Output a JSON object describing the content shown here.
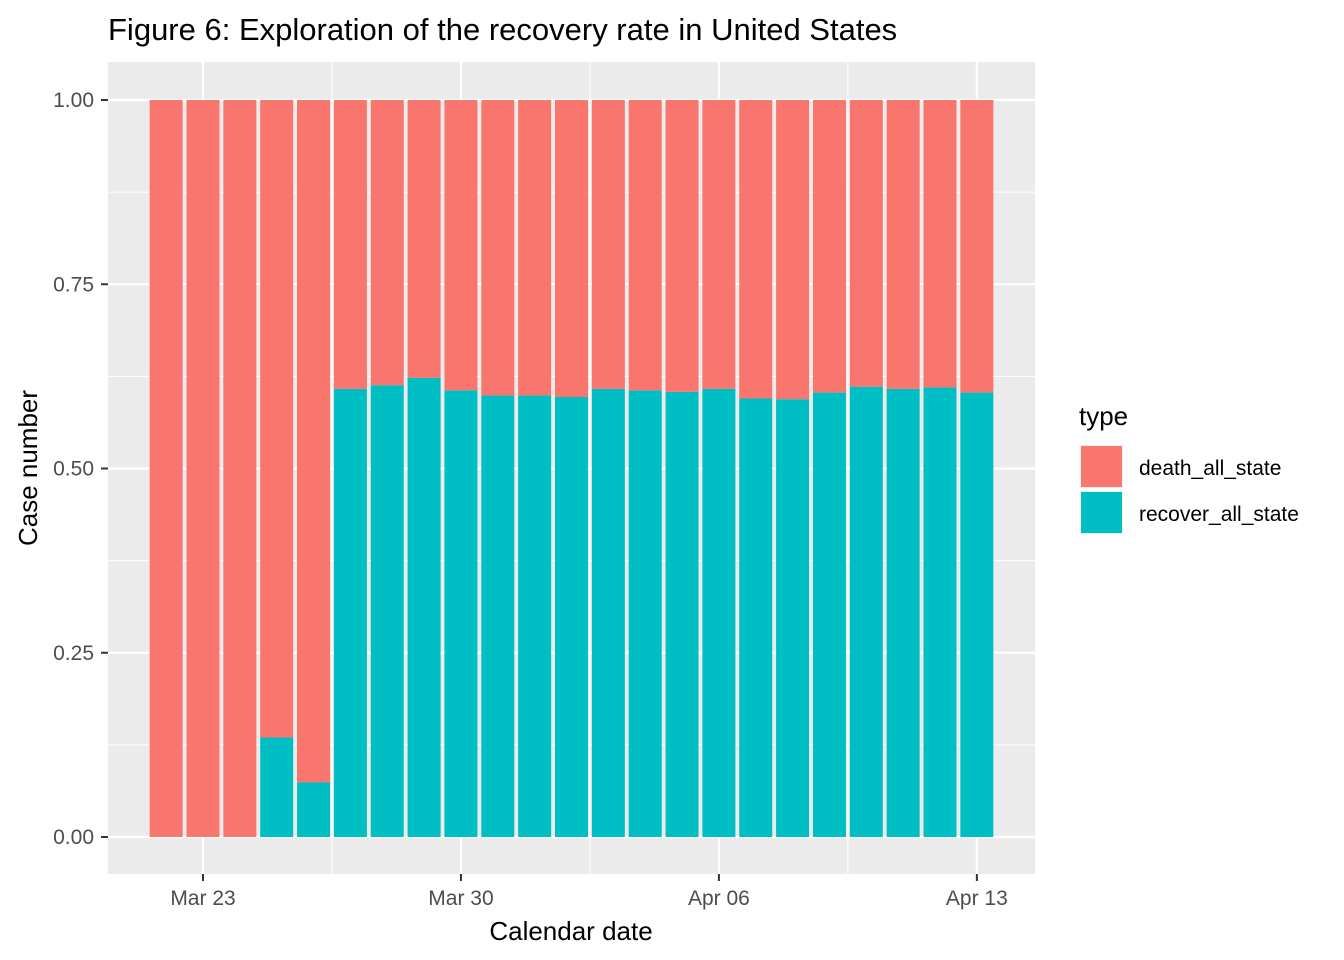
{
  "chart_data": {
    "type": "bar",
    "stacked": true,
    "title": "Figure 6: Exploration of the recovery rate in United States",
    "xlabel": "Calendar date",
    "ylabel": "Case number",
    "ylim": [
      0,
      1
    ],
    "yticks": [
      "0.00",
      "0.25",
      "0.50",
      "0.75",
      "1.00"
    ],
    "x_dates": [
      "2020-03-22",
      "2020-03-23",
      "2020-03-24",
      "2020-03-25",
      "2020-03-26",
      "2020-03-27",
      "2020-03-28",
      "2020-03-29",
      "2020-03-30",
      "2020-03-31",
      "2020-04-01",
      "2020-04-02",
      "2020-04-03",
      "2020-04-04",
      "2020-04-05",
      "2020-04-06",
      "2020-04-07",
      "2020-04-08",
      "2020-04-09",
      "2020-04-10",
      "2020-04-11",
      "2020-04-12",
      "2020-04-13"
    ],
    "xticks": [
      {
        "date": "2020-03-23",
        "label": "Mar 23"
      },
      {
        "date": "2020-03-30",
        "label": "Mar 30"
      },
      {
        "date": "2020-04-06",
        "label": "Apr 06"
      },
      {
        "date": "2020-04-13",
        "label": "Apr 13"
      }
    ],
    "grid": true,
    "legend": {
      "title": "type",
      "placement": "right"
    },
    "series": [
      {
        "name": "death_all_state",
        "color": "#F8766D",
        "values": [
          1.0,
          1.0,
          1.0,
          0.865,
          0.926,
          0.392,
          0.387,
          0.377,
          0.394,
          0.401,
          0.401,
          0.403,
          0.392,
          0.394,
          0.396,
          0.392,
          0.405,
          0.406,
          0.397,
          0.389,
          0.392,
          0.39,
          0.397
        ]
      },
      {
        "name": "recover_all_state",
        "color": "#00BFC4",
        "values": [
          0.0,
          0.0,
          0.0,
          0.135,
          0.074,
          0.608,
          0.613,
          0.623,
          0.606,
          0.599,
          0.599,
          0.597,
          0.608,
          0.606,
          0.604,
          0.608,
          0.595,
          0.594,
          0.603,
          0.611,
          0.608,
          0.61,
          0.603
        ]
      }
    ]
  }
}
